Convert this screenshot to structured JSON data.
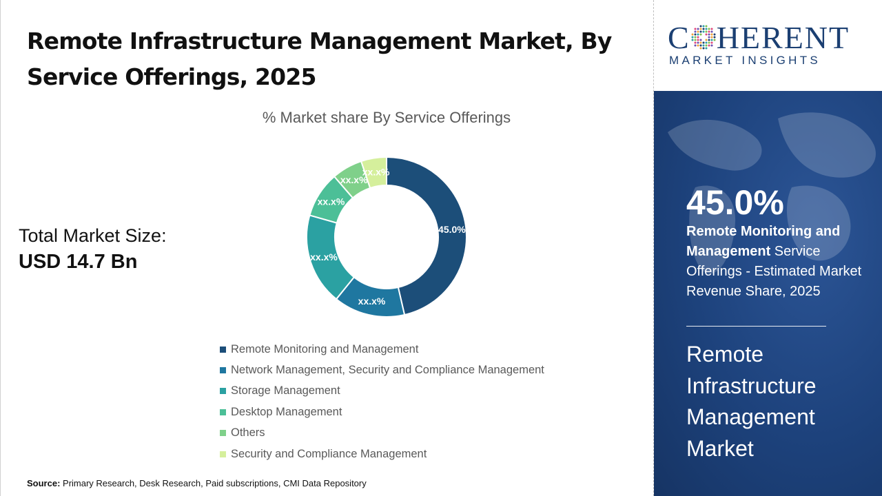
{
  "header": {
    "title": "Remote Infrastructure Management Market, By Service Offerings, 2025"
  },
  "summary": {
    "total_label": "Total Market Size:",
    "total_value": "USD 14.7 Bn"
  },
  "chart_data": {
    "type": "pie",
    "variant": "donut",
    "title": "% Market share By Service Offerings",
    "categories": [
      "Remote Monitoring and Management",
      "Network Management, Security and Compliance Management",
      "Storage Management",
      "Desktop Management",
      "Others",
      "Security and Compliance Management"
    ],
    "values": [
      45.0,
      14.0,
      18.0,
      9.0,
      6.0,
      5.0
    ],
    "data_labels": [
      "45.0%",
      "xx.x%",
      "xx.x%",
      "xx.x%",
      "xx.x%",
      "xx.x%"
    ],
    "colors": [
      "#1c4e79",
      "#1f77a0",
      "#2ba1a2",
      "#4cbf97",
      "#7fd08a",
      "#d5ef9c"
    ],
    "legend_position": "bottom"
  },
  "source": {
    "label": "Source:",
    "text": "Primary Research, Desk Research, Paid subscriptions, CMI Data Repository"
  },
  "brand": {
    "name_pre": "C",
    "name_post": "HERENT",
    "tagline": "MARKET INSIGHTS",
    "color": "#1b3f72"
  },
  "panel": {
    "highlight_value": "45.0%",
    "highlight_bold": "Remote Monitoring and Management",
    "highlight_rest": " Service Offerings - Estimated Market Revenue Share, 2025",
    "market_name": "Remote Infrastructure Management Market"
  }
}
